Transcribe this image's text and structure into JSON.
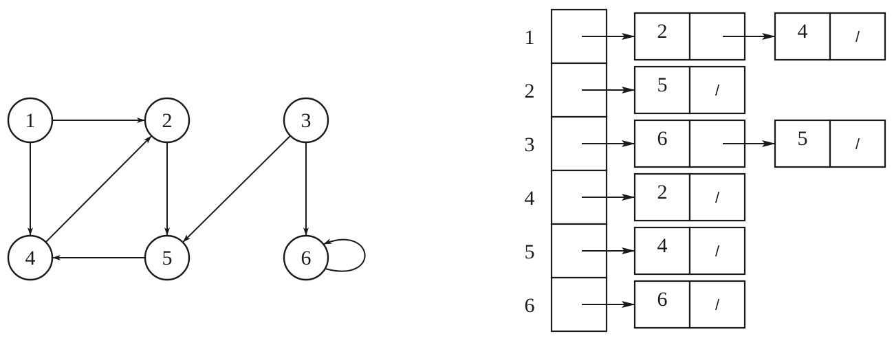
{
  "graph": {
    "nodes": [
      {
        "id": "1",
        "label": "1"
      },
      {
        "id": "2",
        "label": "2"
      },
      {
        "id": "3",
        "label": "3"
      },
      {
        "id": "4",
        "label": "4"
      },
      {
        "id": "5",
        "label": "5"
      },
      {
        "id": "6",
        "label": "6"
      }
    ],
    "edges": [
      {
        "from": "1",
        "to": "2"
      },
      {
        "from": "1",
        "to": "4"
      },
      {
        "from": "2",
        "to": "5"
      },
      {
        "from": "3",
        "to": "5"
      },
      {
        "from": "3",
        "to": "6"
      },
      {
        "from": "4",
        "to": "2"
      },
      {
        "from": "5",
        "to": "4"
      },
      {
        "from": "6",
        "to": "6"
      }
    ]
  },
  "adjacency_list": {
    "nil_symbol": "/",
    "rows": [
      {
        "label": "1",
        "entries": [
          "2",
          "4"
        ]
      },
      {
        "label": "2",
        "entries": [
          "5"
        ]
      },
      {
        "label": "3",
        "entries": [
          "6",
          "5"
        ]
      },
      {
        "label": "4",
        "entries": [
          "2"
        ]
      },
      {
        "label": "5",
        "entries": [
          "4"
        ]
      },
      {
        "label": "6",
        "entries": [
          "6"
        ]
      }
    ]
  }
}
